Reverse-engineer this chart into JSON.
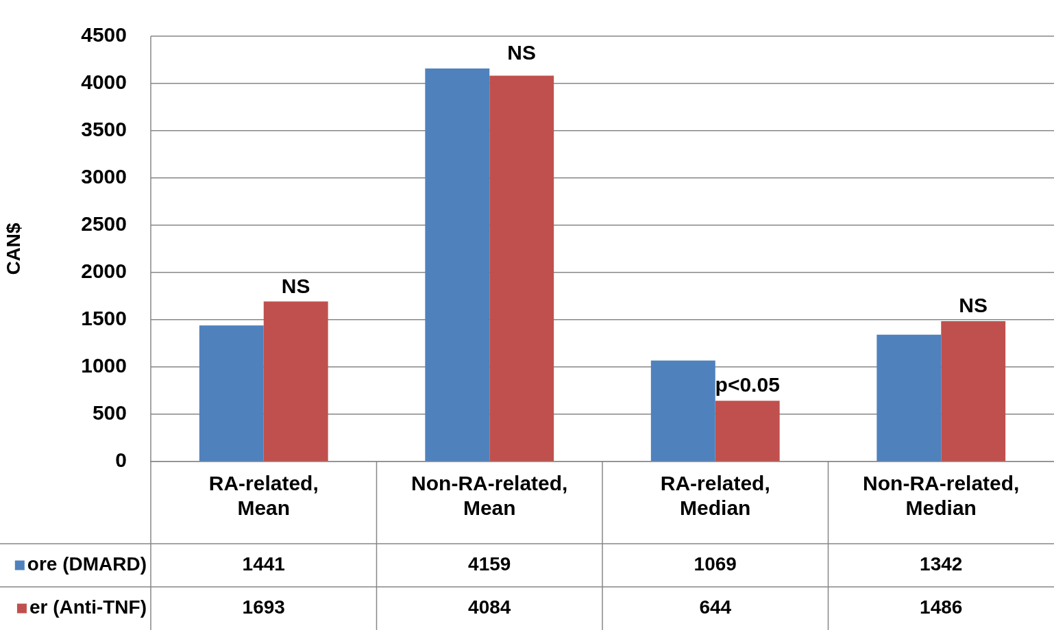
{
  "chart_data": {
    "type": "bar",
    "ylabel": "CAN$",
    "categories": [
      "RA-related, Mean",
      "Non-RA-related, Mean",
      "RA-related, Median",
      "Non-RA-related, Median"
    ],
    "series": [
      {
        "name": "ore (DMARD)",
        "color": "#4f81bd",
        "values": [
          1441,
          4159,
          1069,
          1342
        ]
      },
      {
        "name": "er (Anti-TNF)",
        "color": "#c0504d",
        "values": [
          1693,
          4084,
          644,
          1486
        ]
      }
    ],
    "ylim": [
      0,
      4500
    ],
    "yticks": [
      0,
      500,
      1000,
      1500,
      2000,
      2500,
      3000,
      3500,
      4000,
      4500
    ],
    "grid": "y",
    "legend": "bottom left",
    "data_labels": true,
    "annotations": [
      {
        "text": "NS",
        "x": "RA-related, Mean",
        "y": 1693
      },
      {
        "text": "NS",
        "x": "Non-RA-related, Mean",
        "y": 4159
      },
      {
        "text": "p<0.05",
        "x": "RA-related, Median",
        "y": 644
      },
      {
        "text": "NS",
        "x": "Non-RA-related, Median",
        "y": 1486
      }
    ]
  }
}
